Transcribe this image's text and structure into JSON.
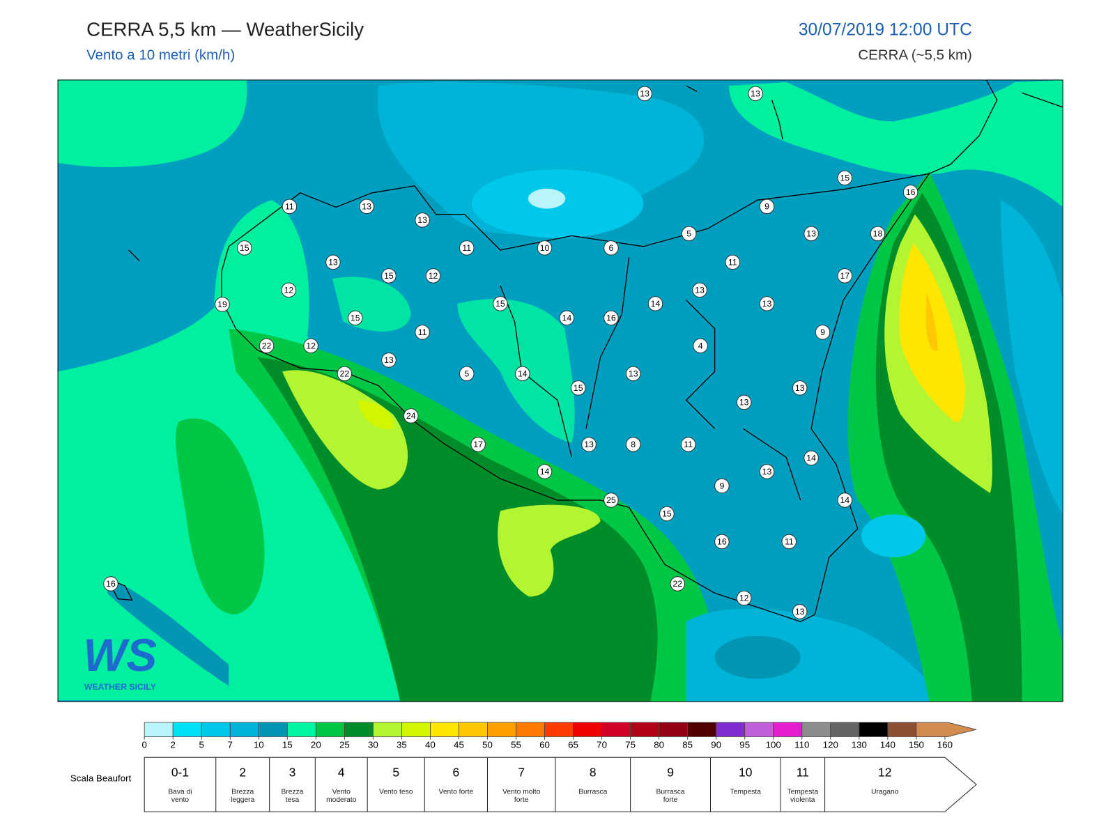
{
  "header": {
    "title": "CERRA 5,5 km — WeatherSicily",
    "subtitle": "Vento a 10 metri (km/h)",
    "datetime": "30/07/2019 12:00 UTC",
    "model": "CERRA (~5,5 km)"
  },
  "map": {
    "stations": [
      13,
      13,
      15,
      16,
      11,
      13,
      13,
      9,
      5,
      13,
      18,
      15,
      11,
      10,
      6,
      13,
      15,
      12,
      11,
      17,
      12,
      13,
      19,
      15,
      14,
      13,
      15,
      14,
      16,
      11,
      9,
      22,
      12,
      4,
      13,
      22,
      5,
      14,
      13,
      15,
      13,
      13,
      24,
      17,
      13,
      8,
      11,
      14,
      14,
      13,
      9,
      25,
      14,
      15,
      16,
      11,
      16,
      22,
      12,
      13
    ]
  },
  "logo": {
    "mark": "WS",
    "text": "WEATHER SICILY"
  },
  "colorbar": {
    "ticks": [
      0,
      2,
      5,
      7,
      10,
      15,
      20,
      25,
      30,
      35,
      40,
      45,
      50,
      55,
      60,
      65,
      70,
      75,
      80,
      85,
      90,
      95,
      100,
      110,
      120,
      130,
      140,
      150,
      160
    ],
    "colors": [
      "#b8f4fa",
      "#00e1f5",
      "#00c8ea",
      "#00b4d8",
      "#0096b4",
      "#00f5a0",
      "#00c846",
      "#008c28",
      "#b4f532",
      "#d2f500",
      "#ffe600",
      "#ffc800",
      "#ffa000",
      "#ff7800",
      "#ff3c00",
      "#f00000",
      "#d20028",
      "#b40014",
      "#960014",
      "#500000",
      "#7d2dd2",
      "#c060d8",
      "#e61ed2",
      "#8c8c8c",
      "#646464",
      "#000000",
      "#8c5032",
      "#d28c50"
    ]
  },
  "beaufort": {
    "label": "Scala Beaufort",
    "levels": [
      {
        "force": "0-1",
        "name": "Bava di vento"
      },
      {
        "force": "2",
        "name": "Brezza leggera"
      },
      {
        "force": "3",
        "name": "Brezza tesa"
      },
      {
        "force": "4",
        "name": "Vento moderato"
      },
      {
        "force": "5",
        "name": "Vento teso"
      },
      {
        "force": "6",
        "name": "Vento forte"
      },
      {
        "force": "7",
        "name": "Vento molto forte"
      },
      {
        "force": "8",
        "name": "Burrasca"
      },
      {
        "force": "9",
        "name": "Burrasca forte"
      },
      {
        "force": "10",
        "name": "Tempesta"
      },
      {
        "force": "11",
        "name": "Tempesta violenta"
      },
      {
        "force": "12",
        "name": "Uragano"
      }
    ]
  }
}
